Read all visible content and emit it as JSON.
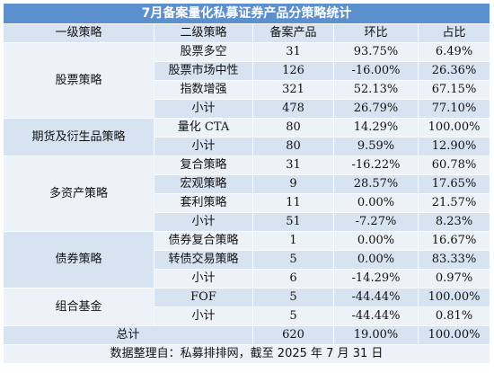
{
  "title": "7月备案量化私募证券产品分策略统计",
  "headers": [
    "一级策略",
    "二级策略",
    "备案产品",
    "环比",
    "占比"
  ],
  "groups": [
    {
      "name": "股票策略",
      "rows": [
        {
          "sub": "股票多空",
          "count": "31",
          "mom": "93.75%",
          "share": "6.49%"
        },
        {
          "sub": "股票市场中性",
          "count": "126",
          "mom": "-16.00%",
          "share": "26.36%"
        },
        {
          "sub": "指数增强",
          "count": "321",
          "mom": "52.13%",
          "share": "67.15%"
        },
        {
          "sub": "小计",
          "count": "478",
          "mom": "26.79%",
          "share": "77.10%"
        }
      ]
    },
    {
      "name": "期货及衍生品策略",
      "rows": [
        {
          "sub": "量化 CTA",
          "count": "80",
          "mom": "14.29%",
          "share": "100.00%"
        },
        {
          "sub": "小计",
          "count": "80",
          "mom": "9.59%",
          "share": "12.90%"
        }
      ]
    },
    {
      "name": "多资产策略",
      "rows": [
        {
          "sub": "复合策略",
          "count": "31",
          "mom": "-16.22%",
          "share": "60.78%"
        },
        {
          "sub": "宏观策略",
          "count": "9",
          "mom": "28.57%",
          "share": "17.65%"
        },
        {
          "sub": "套利策略",
          "count": "11",
          "mom": "0.00%",
          "share": "21.57%"
        },
        {
          "sub": "小计",
          "count": "51",
          "mom": "-7.27%",
          "share": "8.23%"
        }
      ]
    },
    {
      "name": "债券策略",
      "rows": [
        {
          "sub": "债券复合策略",
          "count": "1",
          "mom": "0.00%",
          "share": "16.67%"
        },
        {
          "sub": "转债交易策略",
          "count": "5",
          "mom": "0.00%",
          "share": "83.33%"
        },
        {
          "sub": "小计",
          "count": "6",
          "mom": "-14.29%",
          "share": "0.97%"
        }
      ]
    },
    {
      "name": "组合基金",
      "rows": [
        {
          "sub": "FOF",
          "count": "5",
          "mom": "-44.44%",
          "share": "100.00%"
        },
        {
          "sub": "小计",
          "count": "5",
          "mom": "-44.44%",
          "share": "0.81%"
        }
      ]
    }
  ],
  "total": {
    "label": "总计",
    "count": "620",
    "mom": "19.00%",
    "share": "100.00%"
  },
  "source": "数据整理自：私募排排网，截至 2025 年 7 月 31 日"
}
